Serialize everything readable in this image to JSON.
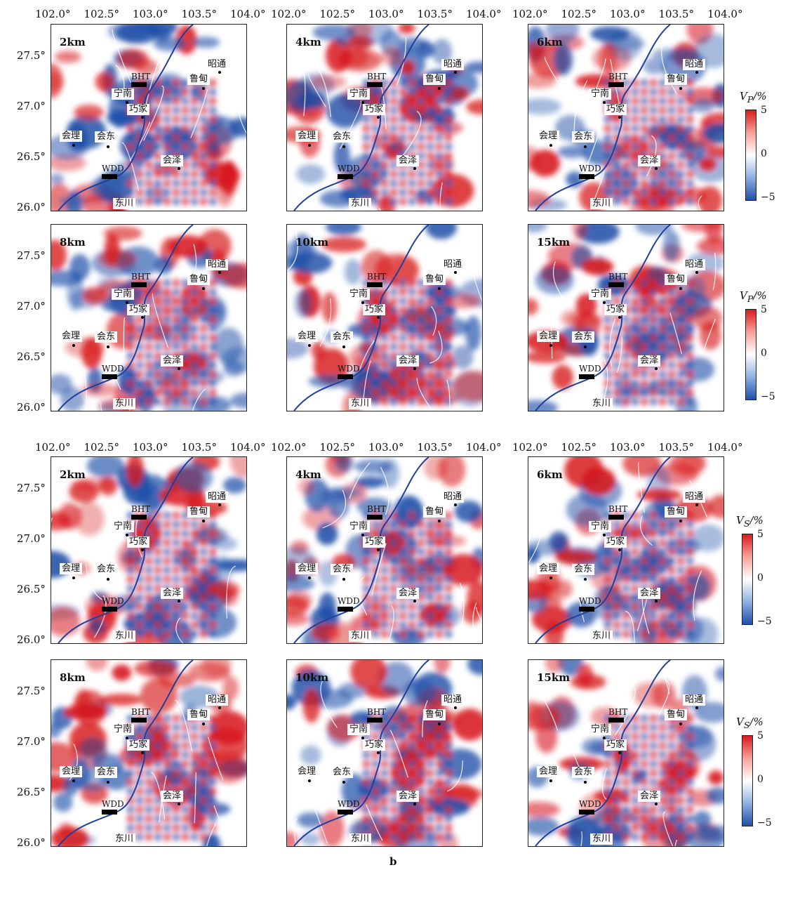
{
  "figure": {
    "caption": "b",
    "x_ticks": [
      "102.0°",
      "102.5°",
      "103.0°",
      "103.5°",
      "104.0°"
    ],
    "y_ticks": [
      "27.5°",
      "27.0°",
      "26.5°",
      "26.0°"
    ],
    "colorbars": [
      {
        "symbol": "V",
        "subscript": "P",
        "unit": "/%",
        "max": "5",
        "mid": "0",
        "min": "−5"
      },
      {
        "symbol": "V",
        "subscript": "S",
        "unit": "/%",
        "max": "5",
        "mid": "0",
        "min": "−5"
      }
    ],
    "colors": {
      "positive": "#d7191c",
      "negative": "#1f4fa8",
      "river": "#1f3f9a"
    }
  },
  "places": {
    "zhaotong": "昭通",
    "ludian": "鲁甸",
    "ningnan": "宁南",
    "qiaojia": "巧家",
    "huili": "会理",
    "huidong": "会东",
    "huize": "会泽",
    "dongchuan": "东川"
  },
  "stations": {
    "bht": "BHT",
    "wdd": "WDD"
  },
  "panels": [
    {
      "block": "P",
      "depth": "2km"
    },
    {
      "block": "P",
      "depth": "4km"
    },
    {
      "block": "P",
      "depth": "6km"
    },
    {
      "block": "P",
      "depth": "8km"
    },
    {
      "block": "P",
      "depth": "10km"
    },
    {
      "block": "P",
      "depth": "15km"
    },
    {
      "block": "S",
      "depth": "2km"
    },
    {
      "block": "S",
      "depth": "4km"
    },
    {
      "block": "S",
      "depth": "6km"
    },
    {
      "block": "S",
      "depth": "8km"
    },
    {
      "block": "S",
      "depth": "10km"
    },
    {
      "block": "S",
      "depth": "15km"
    }
  ]
}
